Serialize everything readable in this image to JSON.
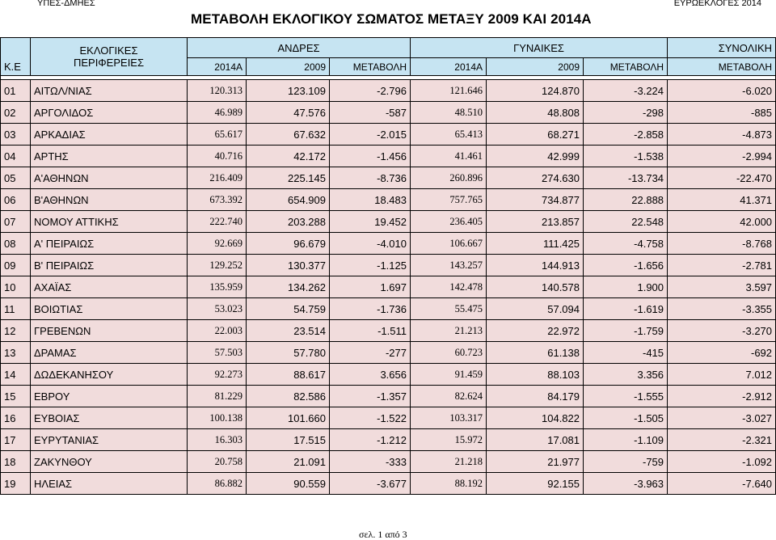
{
  "header": {
    "left": "ΥΠΕΣ-ΔΜΗΕΣ",
    "right": "ΕΥΡΩΕΚΛΟΓΕΣ 2014"
  },
  "title": "ΜΕΤΑΒΟΛΗ ΕΚΛΟΓΙΚΟΥ ΣΩΜΑΤΟΣ ΜΕΤΑΞΥ 2009 ΚΑΙ 2014Α",
  "table": {
    "col_code": "Κ.Ε",
    "col_region_line1": "ΕΚΛΟΓΙΚΕΣ",
    "col_region_line2": "ΠΕΡΙΦΕΡΕΙΕΣ",
    "group_men": "ΑΝΔΡΕΣ",
    "group_women": "ΓΥΝΑΙΚΕΣ",
    "group_total": "ΣΥΝΟΛΙΚΗ",
    "sub_2014a": "2014Α",
    "sub_2009": "2009",
    "sub_change": "ΜΕΤΑΒΟΛΗ",
    "rows": [
      {
        "code": "01",
        "name": "ΑΙΤΩΛ/ΝΙΑΣ",
        "m2014": "120.313",
        "m2009": "123.109",
        "mchg": "-2.796",
        "w2014": "121.646",
        "w2009": "124.870",
        "wchg": "-3.224",
        "total": "-6.020"
      },
      {
        "code": "02",
        "name": "ΑΡΓΟΛΙΔΟΣ",
        "m2014": "46.989",
        "m2009": "47.576",
        "mchg": "-587",
        "w2014": "48.510",
        "w2009": "48.808",
        "wchg": "-298",
        "total": "-885"
      },
      {
        "code": "03",
        "name": "ΑΡΚΑΔΙΑΣ",
        "m2014": "65.617",
        "m2009": "67.632",
        "mchg": "-2.015",
        "w2014": "65.413",
        "w2009": "68.271",
        "wchg": "-2.858",
        "total": "-4.873"
      },
      {
        "code": "04",
        "name": "ΑΡΤΗΣ",
        "m2014": "40.716",
        "m2009": "42.172",
        "mchg": "-1.456",
        "w2014": "41.461",
        "w2009": "42.999",
        "wchg": "-1.538",
        "total": "-2.994"
      },
      {
        "code": "05",
        "name": "Α'ΑΘΗΝΩΝ",
        "m2014": "216.409",
        "m2009": "225.145",
        "mchg": "-8.736",
        "w2014": "260.896",
        "w2009": "274.630",
        "wchg": "-13.734",
        "total": "-22.470"
      },
      {
        "code": "06",
        "name": "Β'ΑΘΗΝΩΝ",
        "m2014": "673.392",
        "m2009": "654.909",
        "mchg": "18.483",
        "w2014": "757.765",
        "w2009": "734.877",
        "wchg": "22.888",
        "total": "41.371"
      },
      {
        "code": "07",
        "name": "ΝΟΜΟΥ ΑΤΤΙΚΗΣ",
        "m2014": "222.740",
        "m2009": "203.288",
        "mchg": "19.452",
        "w2014": "236.405",
        "w2009": "213.857",
        "wchg": "22.548",
        "total": "42.000"
      },
      {
        "code": "08",
        "name": "Α' ΠΕΙΡΑΙΩΣ",
        "m2014": "92.669",
        "m2009": "96.679",
        "mchg": "-4.010",
        "w2014": "106.667",
        "w2009": "111.425",
        "wchg": "-4.758",
        "total": "-8.768"
      },
      {
        "code": "09",
        "name": "Β' ΠΕΙΡΑΙΩΣ",
        "m2014": "129.252",
        "m2009": "130.377",
        "mchg": "-1.125",
        "w2014": "143.257",
        "w2009": "144.913",
        "wchg": "-1.656",
        "total": "-2.781"
      },
      {
        "code": "10",
        "name": "ΑΧΑΪΑΣ",
        "m2014": "135.959",
        "m2009": "134.262",
        "mchg": "1.697",
        "w2014": "142.478",
        "w2009": "140.578",
        "wchg": "1.900",
        "total": "3.597"
      },
      {
        "code": "11",
        "name": "ΒΟΙΩΤΙΑΣ",
        "m2014": "53.023",
        "m2009": "54.759",
        "mchg": "-1.736",
        "w2014": "55.475",
        "w2009": "57.094",
        "wchg": "-1.619",
        "total": "-3.355"
      },
      {
        "code": "12",
        "name": "ΓΡΕΒΕΝΩΝ",
        "m2014": "22.003",
        "m2009": "23.514",
        "mchg": "-1.511",
        "w2014": "21.213",
        "w2009": "22.972",
        "wchg": "-1.759",
        "total": "-3.270"
      },
      {
        "code": "13",
        "name": "ΔΡΑΜΑΣ",
        "m2014": "57.503",
        "m2009": "57.780",
        "mchg": "-277",
        "w2014": "60.723",
        "w2009": "61.138",
        "wchg": "-415",
        "total": "-692"
      },
      {
        "code": "14",
        "name": "ΔΩΔΕΚΑΝΗΣΟΥ",
        "m2014": "92.273",
        "m2009": "88.617",
        "mchg": "3.656",
        "w2014": "91.459",
        "w2009": "88.103",
        "wchg": "3.356",
        "total": "7.012"
      },
      {
        "code": "15",
        "name": "ΕΒΡΟΥ",
        "m2014": "81.229",
        "m2009": "82.586",
        "mchg": "-1.357",
        "w2014": "82.624",
        "w2009": "84.179",
        "wchg": "-1.555",
        "total": "-2.912"
      },
      {
        "code": "16",
        "name": "ΕΥΒΟΙΑΣ",
        "m2014": "100.138",
        "m2009": "101.660",
        "mchg": "-1.522",
        "w2014": "103.317",
        "w2009": "104.822",
        "wchg": "-1.505",
        "total": "-3.027"
      },
      {
        "code": "17",
        "name": "ΕΥΡΥΤΑΝΙΑΣ",
        "m2014": "16.303",
        "m2009": "17.515",
        "mchg": "-1.212",
        "w2014": "15.972",
        "w2009": "17.081",
        "wchg": "-1.109",
        "total": "-2.321"
      },
      {
        "code": "18",
        "name": "ΖΑΚΥΝΘΟΥ",
        "m2014": "20.758",
        "m2009": "21.091",
        "mchg": "-333",
        "w2014": "21.218",
        "w2009": "21.977",
        "wchg": "-759",
        "total": "-1.092"
      },
      {
        "code": "19",
        "name": "ΗΛΕΙΑΣ",
        "m2014": "86.882",
        "m2009": "90.559",
        "mchg": "-3.677",
        "w2014": "88.192",
        "w2009": "92.155",
        "wchg": "-3.963",
        "total": "-7.640"
      }
    ]
  },
  "footer": "σελ. 1 από 3",
  "colors": {
    "header_bg": "#c6e4f2",
    "row_bg": "#f1dcdc",
    "border": "#000000"
  }
}
